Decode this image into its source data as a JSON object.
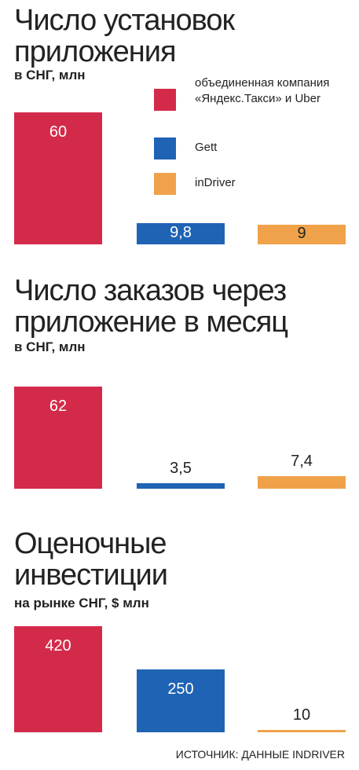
{
  "chart_data": [
    {
      "type": "bar",
      "title": "Число установок приложения",
      "subtitle": "в СНГ, млн",
      "values": [
        60,
        9.8,
        9
      ],
      "value_labels": [
        "60",
        "9,8",
        "9"
      ],
      "colors": [
        "#d42a4a",
        "#1f63b5",
        "#f0a24a"
      ],
      "ylim": [
        0,
        60
      ]
    },
    {
      "type": "bar",
      "title": "Число заказов через приложение в месяц",
      "subtitle": "в СНГ, млн",
      "values": [
        62,
        3.5,
        7.4
      ],
      "value_labels": [
        "62",
        "3,5",
        "7,4"
      ],
      "colors": [
        "#d42a4a",
        "#1f63b5",
        "#f0a24a"
      ],
      "ylim": [
        0,
        62
      ]
    },
    {
      "type": "bar",
      "title": "Оценочные инвестиции",
      "subtitle": "на рынке СНГ, $ млн",
      "values": [
        420,
        250,
        10
      ],
      "colors": [
        "#d42a4a",
        "#1f63b5",
        "#f0a24a"
      ],
      "ylim": [
        0,
        420
      ]
    }
  ],
  "legend": [
    {
      "name": "объединенная компания «Яндекс.Такси» и Uber",
      "color": "#d42a4a"
    },
    {
      "name": "Gett",
      "color": "#1f63b5"
    },
    {
      "name": "inDriver",
      "color": "#f0a24a"
    }
  ],
  "source": "ИСТОЧНИК: ДАННЫЕ INDRIVER"
}
